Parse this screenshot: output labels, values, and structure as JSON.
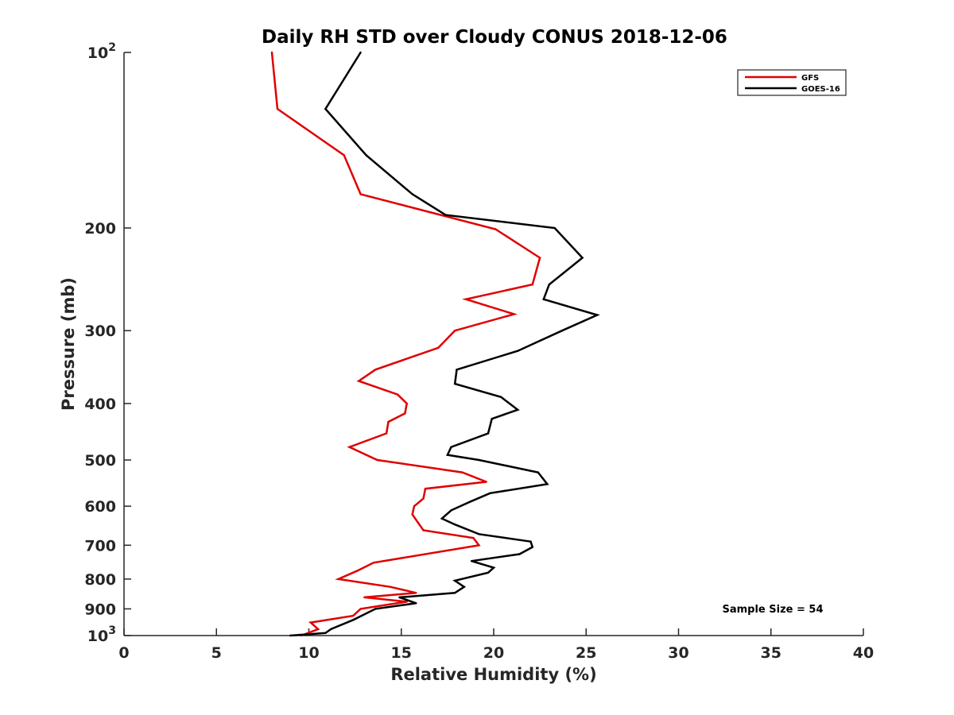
{
  "chart_data": {
    "type": "line",
    "title": "Daily RH STD over Cloudy CONUS 2018-12-06",
    "xlabel": "Relative Humidity (%)",
    "ylabel": "Pressure (mb)",
    "xlim": [
      0,
      40
    ],
    "ylim": [
      100,
      1000
    ],
    "y_scale": "log",
    "y_reversed": true,
    "x_ticks": [
      0,
      5,
      10,
      15,
      20,
      25,
      30,
      35,
      40
    ],
    "x_tick_labels": [
      "0",
      "5",
      "10",
      "15",
      "20",
      "25",
      "30",
      "35",
      "40"
    ],
    "y_ticks": [
      200,
      300,
      400,
      500,
      600,
      700,
      800,
      900
    ],
    "y_tick_labels": [
      "200",
      "300",
      "400",
      "500",
      "600",
      "700",
      "800",
      "900"
    ],
    "y_decade_labels": [
      {
        "value": 100,
        "base": "10",
        "exp": "2"
      },
      {
        "value": 1000,
        "base": "10",
        "exp": "3"
      }
    ],
    "grid": false,
    "legend_position": "top-right",
    "annotation": "Sample Size = 54",
    "series": [
      {
        "name": "GFS",
        "color": "#e00000",
        "points": [
          [
            8.0,
            100
          ],
          [
            8.3,
            125
          ],
          [
            11.9,
            150
          ],
          [
            12.8,
            175
          ],
          [
            20.1,
            201
          ],
          [
            22.5,
            225
          ],
          [
            22.1,
            250
          ],
          [
            18.5,
            265
          ],
          [
            21.1,
            281
          ],
          [
            17.9,
            300
          ],
          [
            17.0,
            321
          ],
          [
            13.6,
            350
          ],
          [
            12.7,
            366
          ],
          [
            14.8,
            386
          ],
          [
            15.3,
            400
          ],
          [
            15.2,
            416
          ],
          [
            14.3,
            430
          ],
          [
            14.2,
            450
          ],
          [
            12.2,
            475
          ],
          [
            13.7,
            500
          ],
          [
            18.3,
            525
          ],
          [
            19.6,
            545
          ],
          [
            16.3,
            560
          ],
          [
            16.2,
            582
          ],
          [
            15.7,
            600
          ],
          [
            15.6,
            620
          ],
          [
            15.9,
            640
          ],
          [
            16.2,
            660
          ],
          [
            18.9,
            680
          ],
          [
            19.2,
            700
          ],
          [
            13.5,
            750
          ],
          [
            12.6,
            775
          ],
          [
            11.6,
            800
          ],
          [
            14.4,
            825
          ],
          [
            15.8,
            845
          ],
          [
            13.0,
            860
          ],
          [
            15.3,
            875
          ],
          [
            12.8,
            900
          ],
          [
            12.4,
            925
          ],
          [
            10.1,
            950
          ],
          [
            10.5,
            975
          ],
          [
            9.6,
            1000
          ]
        ]
      },
      {
        "name": "GOES-16",
        "color": "#000000",
        "points": [
          [
            12.8,
            100
          ],
          [
            10.9,
            125
          ],
          [
            13.1,
            150
          ],
          [
            15.6,
            175
          ],
          [
            17.4,
            190
          ],
          [
            23.3,
            200
          ],
          [
            24.8,
            225
          ],
          [
            23.0,
            250
          ],
          [
            22.7,
            265
          ],
          [
            25.6,
            282
          ],
          [
            23.7,
            300
          ],
          [
            21.3,
            325
          ],
          [
            18.0,
            350
          ],
          [
            17.9,
            370
          ],
          [
            20.4,
            390
          ],
          [
            21.3,
            410
          ],
          [
            19.9,
            425
          ],
          [
            19.7,
            450
          ],
          [
            17.7,
            475
          ],
          [
            17.5,
            490
          ],
          [
            19.2,
            500
          ],
          [
            22.4,
            525
          ],
          [
            22.9,
            550
          ],
          [
            19.8,
            570
          ],
          [
            18.7,
            590
          ],
          [
            17.7,
            610
          ],
          [
            17.2,
            630
          ],
          [
            17.9,
            645
          ],
          [
            19.2,
            670
          ],
          [
            22.0,
            690
          ],
          [
            22.1,
            705
          ],
          [
            21.4,
            725
          ],
          [
            18.8,
            745
          ],
          [
            20.0,
            765
          ],
          [
            19.7,
            780
          ],
          [
            17.9,
            805
          ],
          [
            18.4,
            825
          ],
          [
            17.9,
            845
          ],
          [
            14.9,
            860
          ],
          [
            15.8,
            880
          ],
          [
            13.6,
            900
          ],
          [
            12.4,
            940
          ],
          [
            11.2,
            975
          ],
          [
            10.9,
            990
          ],
          [
            9.0,
            1000
          ]
        ]
      }
    ]
  }
}
